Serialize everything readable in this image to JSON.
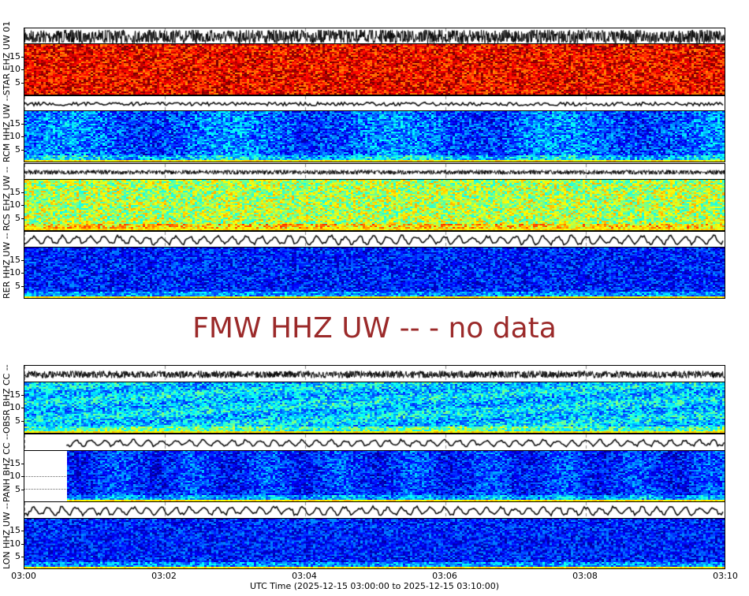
{
  "chart_data": {
    "type": "heatmap",
    "title": "",
    "xlabel": "UTC Time (2025-12-15 03:00:00 to 2025-12-15 03:10:00)",
    "x_ticks": [
      "03:00",
      "03:02",
      "03:04",
      "03:06",
      "03:08",
      "03:10"
    ],
    "x_range": [
      "2025-12-15 03:00:00",
      "2025-12-15 03:10:00"
    ],
    "ylabel_units": "Hz",
    "y_ticks": [
      5,
      10,
      15
    ],
    "ylim": [
      0,
      20
    ],
    "panels": [
      {
        "station": "STAR EHZ UW 01",
        "colormap_dominant": "red-orange",
        "has_data": true,
        "data_start": "03:00"
      },
      {
        "station": "RCM HHZ UW --",
        "colormap_dominant": "blue",
        "has_data": true,
        "data_start": "03:00"
      },
      {
        "station": "RCS EHZ UW --",
        "colormap_dominant": "yellow-green",
        "has_data": true,
        "data_start": "03:00"
      },
      {
        "station": "RER HHZ UW --",
        "colormap_dominant": "dark-blue",
        "has_data": true,
        "data_start": "03:00"
      },
      {
        "station": "FMW HHZ UW --",
        "has_data": false,
        "message": "FMW HHZ UW -- - no data"
      },
      {
        "station": "OBSR BHZ CC --",
        "colormap_dominant": "cyan-blue",
        "has_data": true,
        "data_start": "03:00"
      },
      {
        "station": "PANH BHZ CC --",
        "colormap_dominant": "dark-blue",
        "has_data": true,
        "data_start": "03:00:36"
      },
      {
        "station": "LON HHZ UW --",
        "colormap_dominant": "dark-blue",
        "has_data": true,
        "data_start": "03:00"
      }
    ]
  },
  "labels": {
    "p1": "STAR EHZ UW 01",
    "p2": "RCM HHZ UW --",
    "p3": "RCS EHZ UW --",
    "p4": "RER HHZ UW --",
    "p5": "OBSR BHZ CC --",
    "p6": "PANH BHZ CC --",
    "p7": "LON HHZ UW --",
    "nodata": "FMW HHZ UW -- - no data"
  },
  "ticks": {
    "y": [
      "15",
      "10",
      "5"
    ],
    "x": [
      "03:00",
      "03:02",
      "03:04",
      "03:06",
      "03:08",
      "03:10"
    ]
  },
  "colors": {
    "nodata_text": "#9b2a2a",
    "gridline": "#888888"
  }
}
